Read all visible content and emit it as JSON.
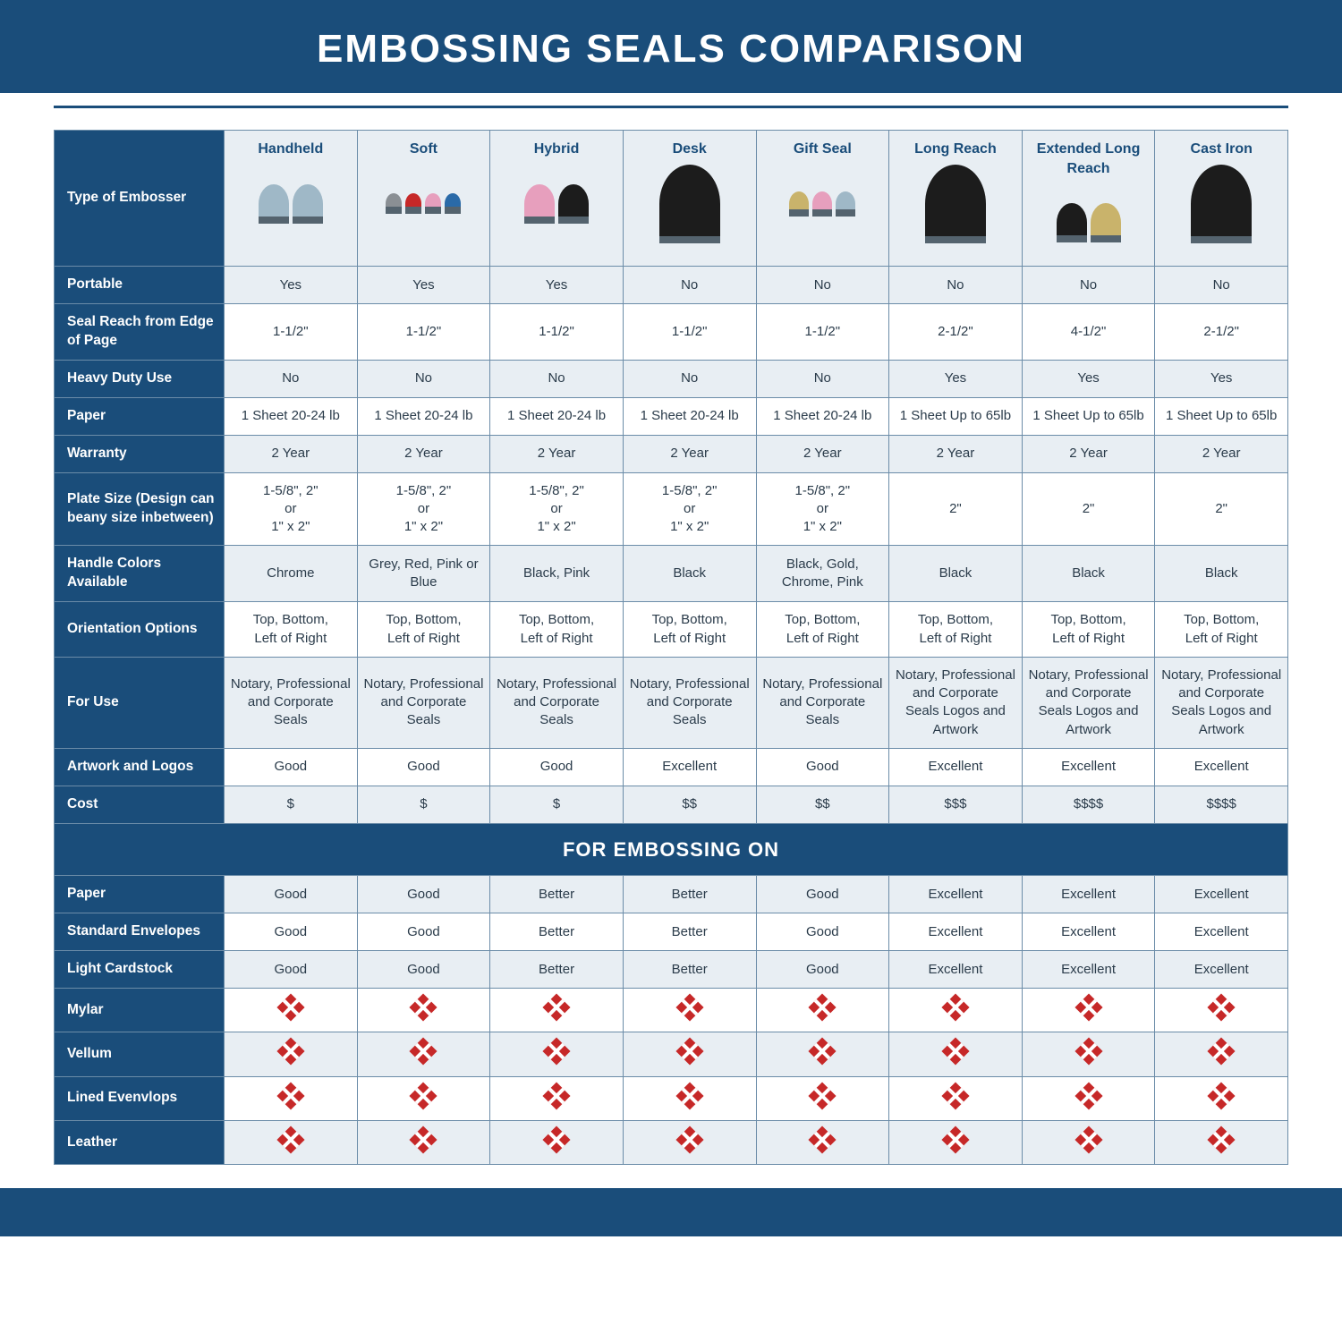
{
  "title": "EMBOSSING SEALS COMPARISON",
  "section_label": "FOR EMBOSSING ON",
  "table": {
    "type": "table",
    "header_bg": "#1a4d7a",
    "header_text": "#ffffff",
    "cell_border": "#6b8ca8",
    "alt_row_bg": "#e8eef3",
    "text_color": "#2a3b4a",
    "colhead_text": "#1a4d7a",
    "x_color": "#c62828",
    "title_fontsize": 44,
    "body_fontsize": 15,
    "type_label": "Type of Embosser",
    "columns": [
      {
        "label": "Handheld",
        "icon_colors": [
          "#9fb8c7",
          "#9fb8c7"
        ]
      },
      {
        "label": "Soft",
        "icon_colors": [
          "#8a8f94",
          "#c62828",
          "#e79fbd",
          "#2a6aa8"
        ]
      },
      {
        "label": "Hybrid",
        "icon_colors": [
          "#e79fbd",
          "#1c1c1c"
        ]
      },
      {
        "label": "Desk",
        "icon_colors": [
          "#1c1c1c"
        ]
      },
      {
        "label": "Gift Seal",
        "icon_colors": [
          "#c9b36b",
          "#e79fbd",
          "#9fb8c7"
        ]
      },
      {
        "label": "Long Reach",
        "icon_colors": [
          "#1c1c1c"
        ]
      },
      {
        "label": "Extended Long Reach",
        "icon_colors": [
          "#1c1c1c",
          "#c9b36b"
        ]
      },
      {
        "label": "Cast Iron",
        "icon_colors": [
          "#1c1c1c"
        ]
      }
    ],
    "rows": [
      {
        "label": "Portable",
        "alt": true,
        "cells": [
          "Yes",
          "Yes",
          "Yes",
          "No",
          "No",
          "No",
          "No",
          "No"
        ]
      },
      {
        "label": "Seal Reach from Edge of Page",
        "alt": false,
        "cells": [
          "1-1/2\"",
          "1-1/2\"",
          "1-1/2\"",
          "1-1/2\"",
          "1-1/2\"",
          "2-1/2\"",
          "4-1/2\"",
          "2-1/2\""
        ]
      },
      {
        "label": "Heavy Duty Use",
        "alt": true,
        "cells": [
          "No",
          "No",
          "No",
          "No",
          "No",
          "Yes",
          "Yes",
          "Yes"
        ]
      },
      {
        "label": "Paper",
        "alt": false,
        "cells": [
          "1 Sheet 20-24 lb",
          "1 Sheet 20-24 lb",
          "1 Sheet 20-24 lb",
          "1 Sheet 20-24 lb",
          "1 Sheet 20-24 lb",
          "1 Sheet Up to 65lb",
          "1 Sheet Up to 65lb",
          "1 Sheet Up to 65lb"
        ]
      },
      {
        "label": "Warranty",
        "alt": true,
        "cells": [
          "2 Year",
          "2 Year",
          "2 Year",
          "2 Year",
          "2 Year",
          "2 Year",
          "2 Year",
          "2 Year"
        ]
      },
      {
        "label": "Plate Size (Design can beany size inbetween)",
        "alt": false,
        "cells": [
          "1-5/8\", 2\"\nor\n1\" x 2\"",
          "1-5/8\", 2\"\nor\n1\" x 2\"",
          "1-5/8\", 2\"\nor\n1\" x 2\"",
          "1-5/8\", 2\"\nor\n1\" x 2\"",
          "1-5/8\", 2\"\nor\n1\" x 2\"",
          "2\"",
          "2\"",
          "2\""
        ]
      },
      {
        "label": "Handle Colors Available",
        "alt": true,
        "cells": [
          "Chrome",
          "Grey, Red, Pink or Blue",
          "Black, Pink",
          "Black",
          "Black, Gold, Chrome, Pink",
          "Black",
          "Black",
          "Black"
        ]
      },
      {
        "label": "Orientation Options",
        "alt": false,
        "cells": [
          "Top, Bottom,\nLeft of Right",
          "Top, Bottom,\nLeft of Right",
          "Top, Bottom,\nLeft of Right",
          "Top, Bottom,\nLeft of Right",
          "Top, Bottom,\nLeft of Right",
          "Top, Bottom,\nLeft of Right",
          "Top, Bottom,\nLeft of Right",
          "Top, Bottom,\nLeft of Right"
        ]
      },
      {
        "label": "For Use",
        "alt": true,
        "cells": [
          "Notary, Professional and Corporate Seals",
          "Notary, Professional and Corporate Seals",
          "Notary, Professional and Corporate Seals",
          "Notary, Professional and Corporate Seals",
          "Notary, Professional and Corporate Seals",
          "Notary, Professional and Corporate Seals Logos and Artwork",
          "Notary, Professional and Corporate Seals Logos and Artwork",
          "Notary, Professional and Corporate Seals Logos and Artwork"
        ]
      },
      {
        "label": "Artwork and Logos",
        "alt": false,
        "cells": [
          "Good",
          "Good",
          "Good",
          "Excellent",
          "Good",
          "Excellent",
          "Excellent",
          "Excellent"
        ]
      },
      {
        "label": "Cost",
        "alt": true,
        "cells": [
          "$",
          "$",
          "$",
          "$$",
          "$$",
          "$$$",
          "$$$$",
          "$$$$"
        ]
      }
    ],
    "emboss_rows": [
      {
        "label": "Paper",
        "alt": true,
        "cells": [
          "Good",
          "Good",
          "Better",
          "Better",
          "Good",
          "Excellent",
          "Excellent",
          "Excellent"
        ]
      },
      {
        "label": "Standard Envelopes",
        "alt": false,
        "cells": [
          "Good",
          "Good",
          "Better",
          "Better",
          "Good",
          "Excellent",
          "Excellent",
          "Excellent"
        ]
      },
      {
        "label": "Light Cardstock",
        "alt": true,
        "cells": [
          "Good",
          "Good",
          "Better",
          "Better",
          "Good",
          "Excellent",
          "Excellent",
          "Excellent"
        ]
      },
      {
        "label": "Mylar",
        "alt": false,
        "cells": [
          "X",
          "X",
          "X",
          "X",
          "X",
          "X",
          "X",
          "X"
        ]
      },
      {
        "label": "Vellum",
        "alt": true,
        "cells": [
          "X",
          "X",
          "X",
          "X",
          "X",
          "X",
          "X",
          "X"
        ]
      },
      {
        "label": "Lined Evenvlops",
        "alt": false,
        "cells": [
          "X",
          "X",
          "X",
          "X",
          "X",
          "X",
          "X",
          "X"
        ]
      },
      {
        "label": "Leather",
        "alt": true,
        "cells": [
          "X",
          "X",
          "X",
          "X",
          "X",
          "X",
          "X",
          "X"
        ]
      }
    ]
  }
}
